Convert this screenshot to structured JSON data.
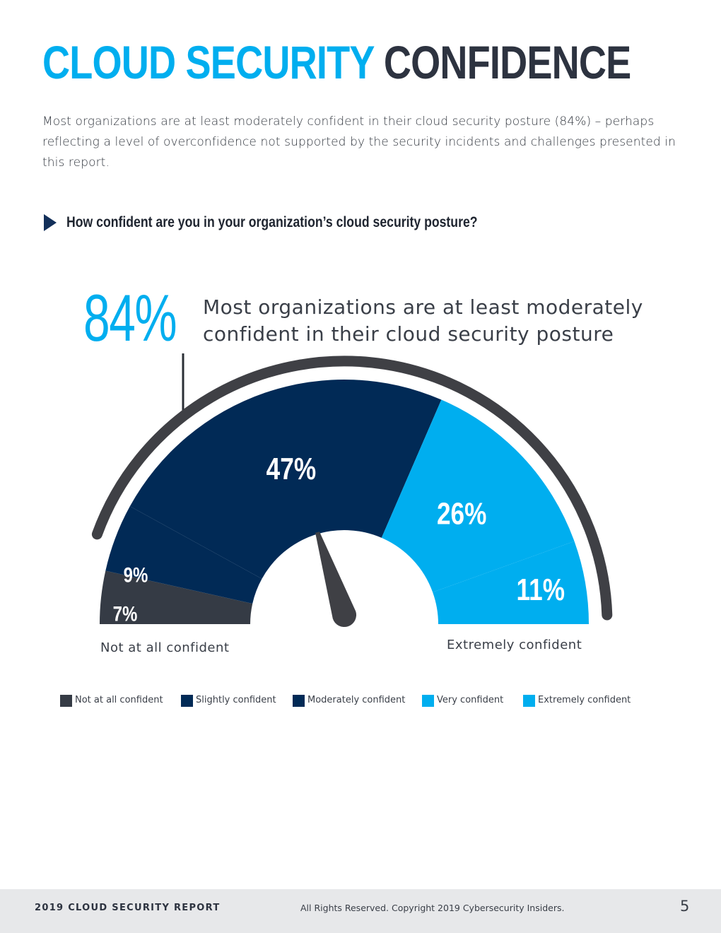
{
  "header": {
    "title_part1": "CLOUD SECURITY",
    "title_part2": "CONFIDENCE",
    "intro": "Most organizations are at least moderately confident in their cloud security posture (84%) – perhaps reflecting a level of overconfidence not supported by the security incidents and challenges presented in this report."
  },
  "question": "How confident are you in your organization’s cloud security posture?",
  "highlight": {
    "value": "84%",
    "text": "Most organizations are at least moderately confident in their cloud security posture"
  },
  "chart_data": {
    "type": "pie",
    "variant": "semicircle-gauge",
    "categories": [
      "Not at all confident",
      "Slightly confident",
      "Moderately confident",
      "Very confident",
      "Extremely confident"
    ],
    "values": [
      7,
      9,
      47,
      26,
      11
    ],
    "colors": [
      "#353b45",
      "#012a56",
      "#012a56",
      "#00aeef",
      "#00aeef"
    ],
    "data_labels": [
      "7%",
      "9%",
      "47%",
      "26%",
      "11%"
    ],
    "axis_labels": {
      "start": "Not at all confident",
      "end": "Extremely confident"
    },
    "legend_placement": "bottom",
    "ring_color": "#3f4045"
  },
  "footer": {
    "report": "2019 CLOUD SECURITY REPORT",
    "copyright": "All Rights Reserved. Copyright 2019 Cybersecurity Insiders.",
    "page": "5"
  }
}
